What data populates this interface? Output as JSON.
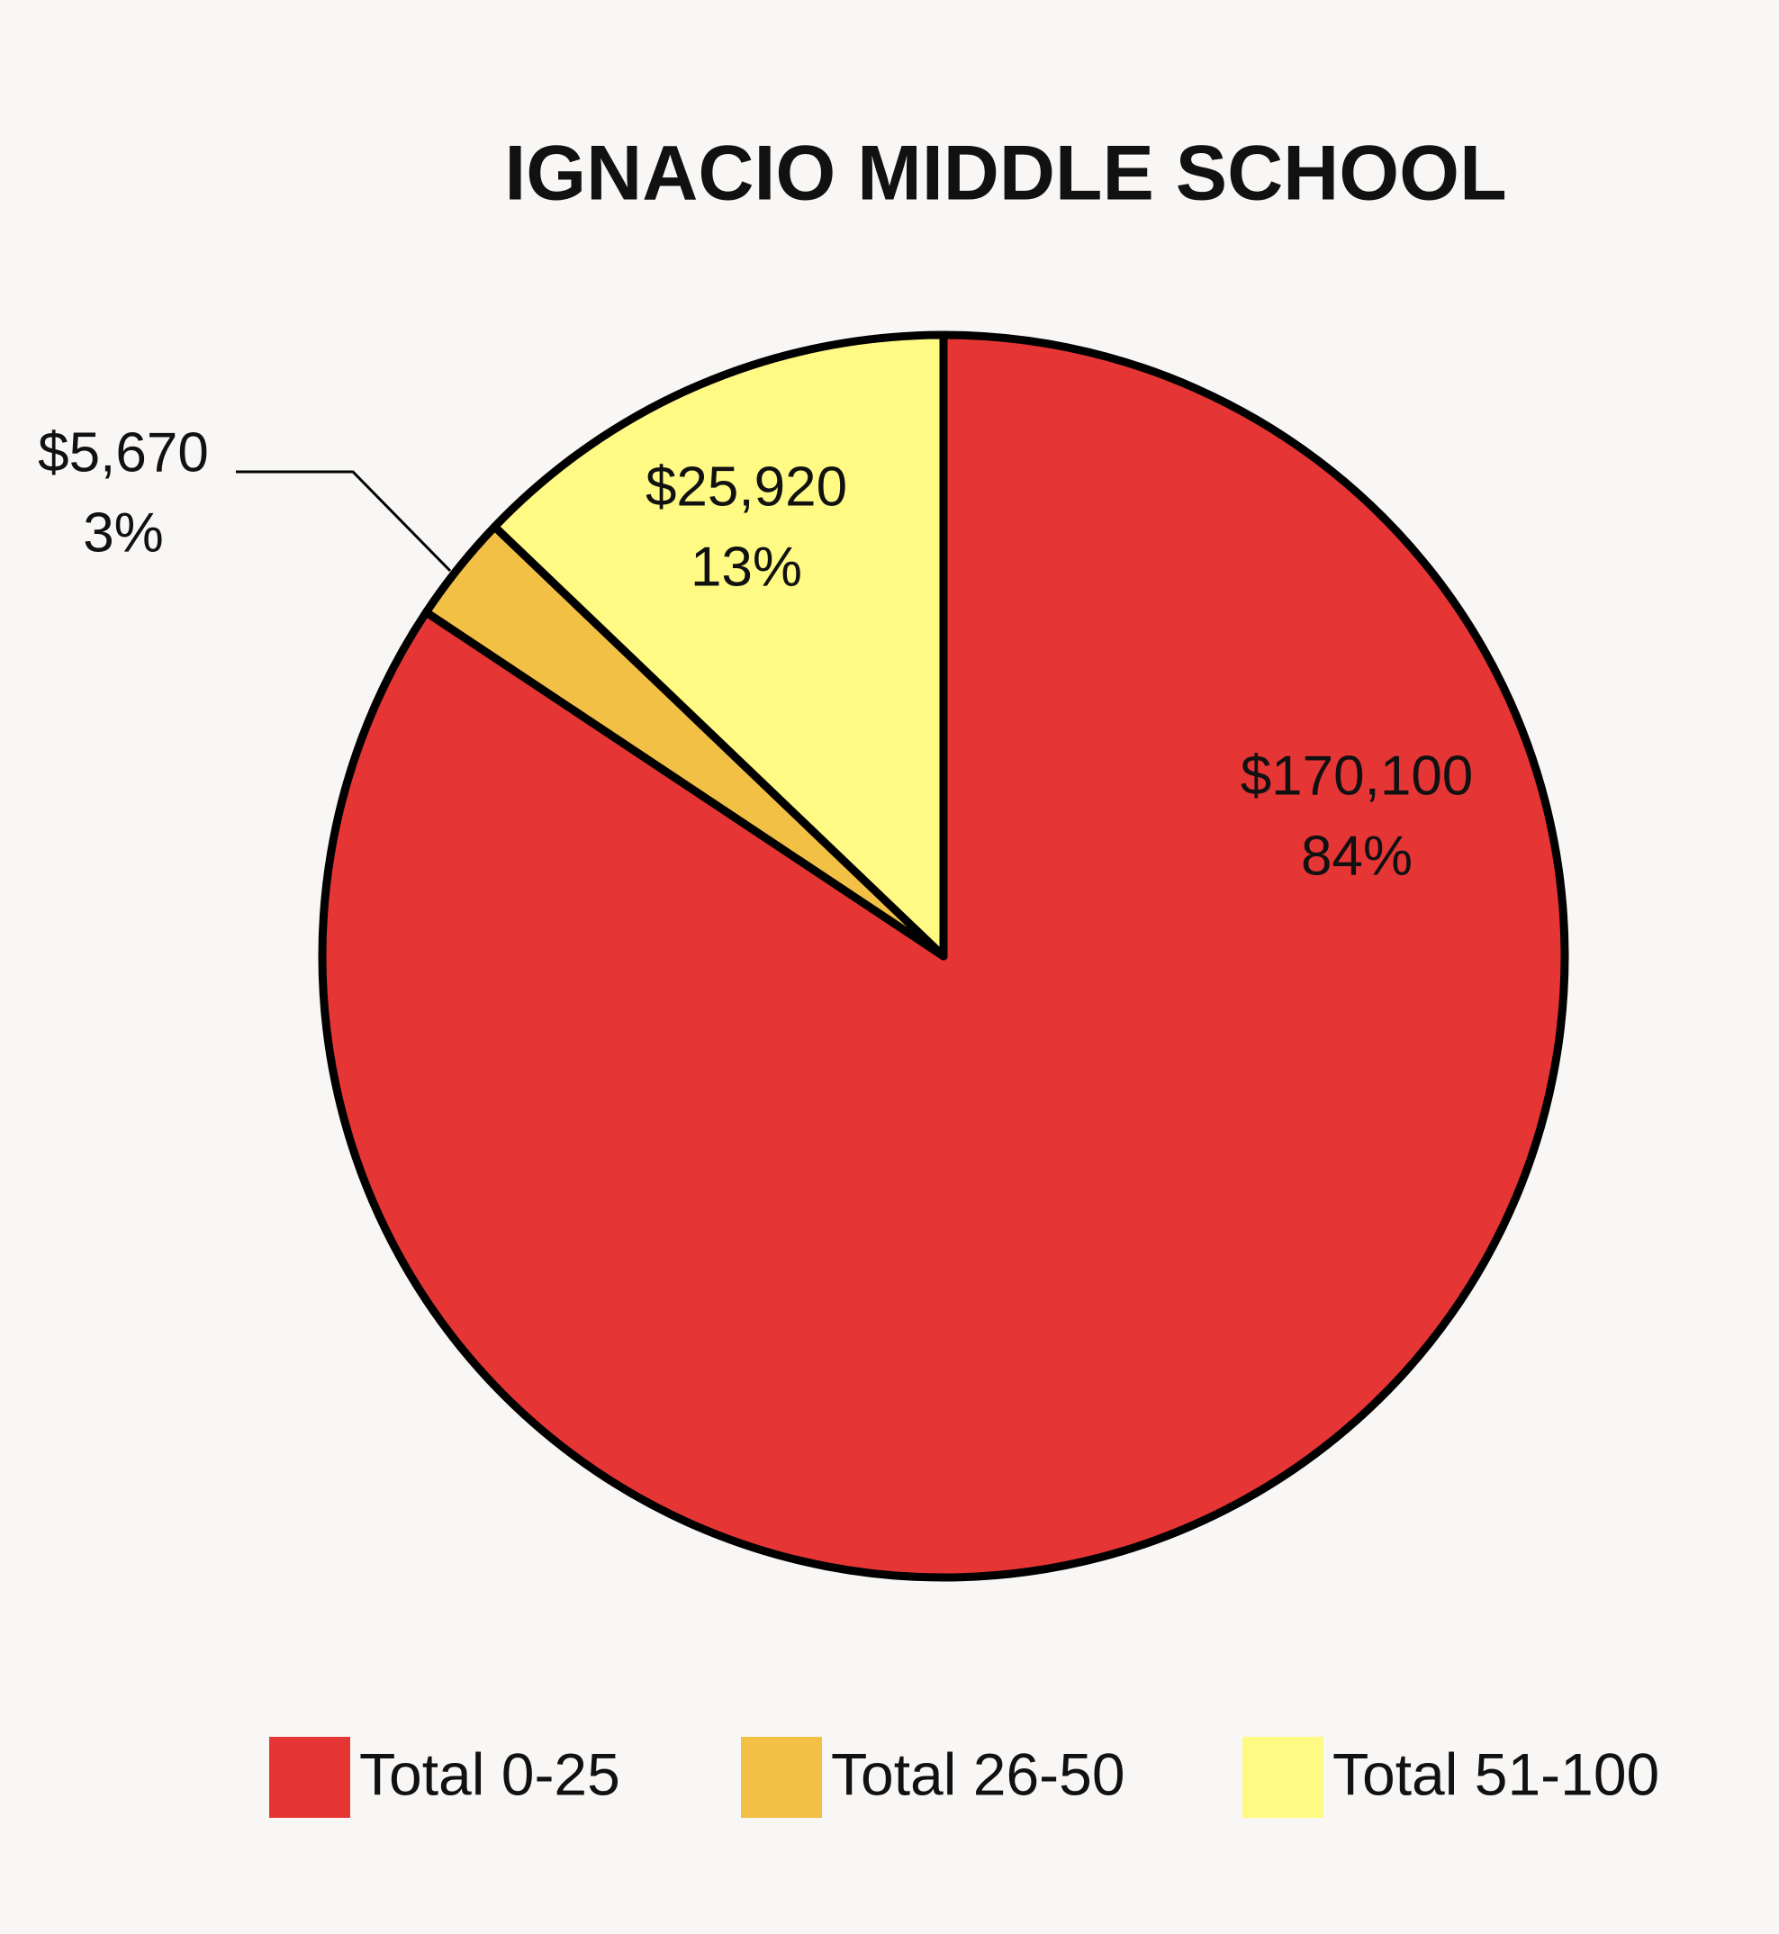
{
  "chart_data": {
    "type": "pie",
    "title": "IGNACIO MIDDLE SCHOOL",
    "categories": [
      "Total 0-25",
      "Total 26-50",
      "Total 51-100"
    ],
    "values": [
      170100,
      5670,
      25920
    ],
    "value_labels": [
      "$170,100",
      "$5,670",
      "$25,920"
    ],
    "percentages": [
      84,
      3,
      13
    ],
    "percentage_labels": [
      "84%",
      "3%",
      "13%"
    ],
    "colors": [
      "#e63535",
      "#f2c044",
      "#fefa84"
    ],
    "legend": "bottom"
  }
}
